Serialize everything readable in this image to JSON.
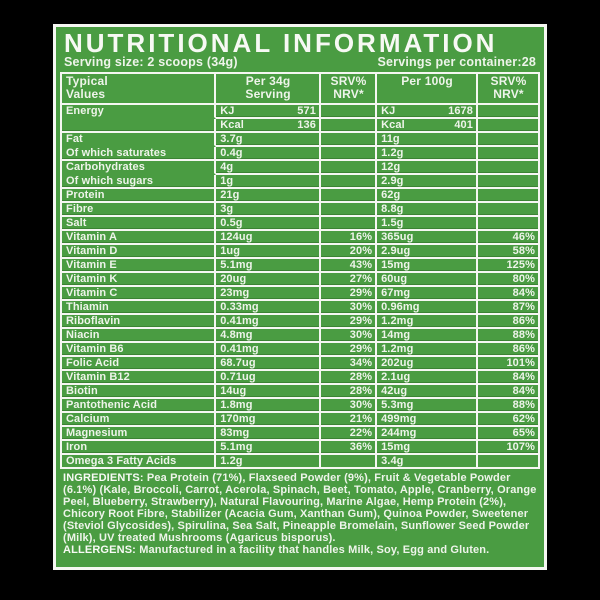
{
  "label": {
    "title": "NUTRITIONAL INFORMATION",
    "serving_size": "Serving size: 2 scoops (34g)",
    "servings_per_container": "Servings per container:28",
    "columns": [
      "Typical\nValues",
      "Per 34g\nServing",
      "SRV%\nNRV*",
      "Per 100g",
      "SRV%\nNRV*"
    ],
    "rows": [
      {
        "label": "Energy",
        "unit": "KJ",
        "per_serving": "571",
        "srv_serving": "",
        "per_100g": "1678",
        "srv_100g": "",
        "group_with_next": true
      },
      {
        "label": "",
        "unit": "Kcal",
        "per_serving": "136",
        "srv_serving": "",
        "per_100g": "401",
        "srv_100g": "",
        "group_with_next": false
      },
      {
        "label": "Fat",
        "unit": null,
        "per_serving": "3.7g",
        "srv_serving": "",
        "per_100g": "11g",
        "srv_100g": "",
        "group_with_next": true
      },
      {
        "label": "Of which saturates",
        "unit": null,
        "per_serving": "0.4g",
        "srv_serving": "",
        "per_100g": "1.2g",
        "srv_100g": "",
        "group_with_next": false
      },
      {
        "label": "Carbohydrates",
        "unit": null,
        "per_serving": "4g",
        "srv_serving": "",
        "per_100g": "12g",
        "srv_100g": "",
        "group_with_next": true
      },
      {
        "label": "Of which sugars",
        "unit": null,
        "per_serving": "1g",
        "srv_serving": "",
        "per_100g": "2.9g",
        "srv_100g": "",
        "group_with_next": false
      },
      {
        "label": "Protein",
        "unit": null,
        "per_serving": "21g",
        "srv_serving": "",
        "per_100g": "62g",
        "srv_100g": "",
        "group_with_next": false
      },
      {
        "label": "Fibre",
        "unit": null,
        "per_serving": "3g",
        "srv_serving": "",
        "per_100g": "8.8g",
        "srv_100g": "",
        "group_with_next": false
      },
      {
        "label": "Salt",
        "unit": null,
        "per_serving": "0.5g",
        "srv_serving": "",
        "per_100g": "1.5g",
        "srv_100g": "",
        "group_with_next": false
      },
      {
        "label": "Vitamin A",
        "unit": null,
        "per_serving": "124ug",
        "srv_serving": "16%",
        "per_100g": "365ug",
        "srv_100g": "46%",
        "group_with_next": false
      },
      {
        "label": "Vitamin D",
        "unit": null,
        "per_serving": "1ug",
        "srv_serving": "20%",
        "per_100g": "2.9ug",
        "srv_100g": "58%",
        "group_with_next": false
      },
      {
        "label": "Vitamin E",
        "unit": null,
        "per_serving": "5.1mg",
        "srv_serving": "43%",
        "per_100g": "15mg",
        "srv_100g": "125%",
        "group_with_next": false
      },
      {
        "label": "Vitamin K",
        "unit": null,
        "per_serving": "20ug",
        "srv_serving": "27%",
        "per_100g": "60ug",
        "srv_100g": "80%",
        "group_with_next": false
      },
      {
        "label": "Vitamin C",
        "unit": null,
        "per_serving": "23mg",
        "srv_serving": "29%",
        "per_100g": "67mg",
        "srv_100g": "84%",
        "group_with_next": false
      },
      {
        "label": "Thiamin",
        "unit": null,
        "per_serving": "0.33mg",
        "srv_serving": "30%",
        "per_100g": "0.96mg",
        "srv_100g": "87%",
        "group_with_next": false
      },
      {
        "label": "Riboflavin",
        "unit": null,
        "per_serving": "0.41mg",
        "srv_serving": "29%",
        "per_100g": "1.2mg",
        "srv_100g": "86%",
        "group_with_next": false
      },
      {
        "label": "Niacin",
        "unit": null,
        "per_serving": "4.8mg",
        "srv_serving": "30%",
        "per_100g": "14mg",
        "srv_100g": "88%",
        "group_with_next": false
      },
      {
        "label": "Vitamin B6",
        "unit": null,
        "per_serving": "0.41mg",
        "srv_serving": "29%",
        "per_100g": "1.2mg",
        "srv_100g": "86%",
        "group_with_next": false
      },
      {
        "label": "Folic Acid",
        "unit": null,
        "per_serving": "68.7ug",
        "srv_serving": "34%",
        "per_100g": "202ug",
        "srv_100g": "101%",
        "group_with_next": false
      },
      {
        "label": "Vitamin B12",
        "unit": null,
        "per_serving": "0.71ug",
        "srv_serving": "28%",
        "per_100g": "2.1ug",
        "srv_100g": "84%",
        "group_with_next": false
      },
      {
        "label": "Biotin",
        "unit": null,
        "per_serving": "14ug",
        "srv_serving": "28%",
        "per_100g": "42ug",
        "srv_100g": "84%",
        "group_with_next": false
      },
      {
        "label": "Pantothenic Acid",
        "unit": null,
        "per_serving": "1.8mg",
        "srv_serving": "30%",
        "per_100g": "5.3mg",
        "srv_100g": "88%",
        "group_with_next": false
      },
      {
        "label": "Calcium",
        "unit": null,
        "per_serving": "170mg",
        "srv_serving": "21%",
        "per_100g": "499mg",
        "srv_100g": "62%",
        "group_with_next": false
      },
      {
        "label": "Magnesium",
        "unit": null,
        "per_serving": "83mg",
        "srv_serving": "22%",
        "per_100g": "244mg",
        "srv_100g": "65%",
        "group_with_next": false
      },
      {
        "label": "Iron",
        "unit": null,
        "per_serving": "5.1mg",
        "srv_serving": "36%",
        "per_100g": "15mg",
        "srv_100g": "107%",
        "group_with_next": false
      },
      {
        "label": "Omega 3 Fatty Acids",
        "unit": null,
        "per_serving": "1.2g",
        "srv_serving": "",
        "per_100g": "3.4g",
        "srv_100g": "",
        "group_with_next": false
      }
    ],
    "ingredients_label": "INGREDIENTS:",
    "ingredients_text": "Pea Protein (71%), Flaxseed Powder (9%), Fruit & Vegetable Powder (6.1%) (Kale, Broccoli, Carrot, Acerola, Spinach, Beet, Tomato, Apple, Cranberry, Orange Peel, Blueberry, Strawberry), Natural Flavouring, Marine Algae, Hemp Protein (2%), Chicory Root Fibre, Stabilizer (Acacia Gum, Xanthan Gum), Quinoa Powder, Sweetener (Steviol Glycosides), Spirulina, Sea Salt, Pineapple Bromelain, Sunflower Seed Powder (Milk), UV treated Mushrooms (Agaricus bisporus).",
    "allergens_label": "ALLERGENS:",
    "allergens_text": "Manufactured in a facility that handles Milk, Soy, Egg and Gluten.",
    "colors": {
      "background": "#000000",
      "panel_green": "#4a9c42",
      "line_white": "#f5f7f2",
      "text": "#eef4ea"
    }
  }
}
